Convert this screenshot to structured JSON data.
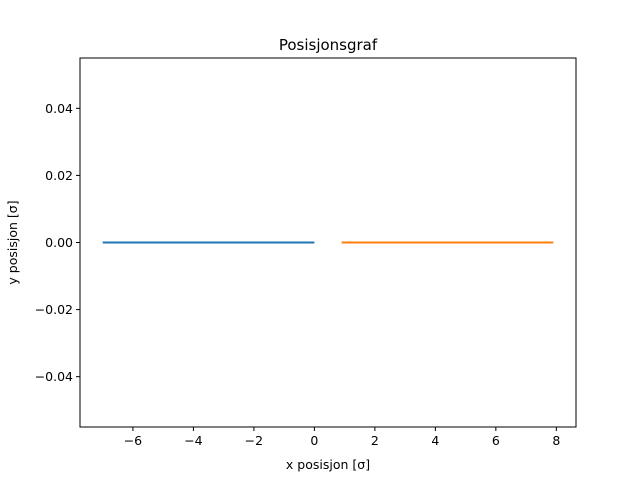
{
  "chart_data": {
    "type": "line",
    "title": "Posisjonsgraf",
    "xlabel": "x posisjon [σ]",
    "ylabel": "y posisjon [σ]",
    "xlim": [
      -7.75,
      8.65
    ],
    "ylim": [
      -0.055,
      0.055
    ],
    "xticks": [
      -6,
      -4,
      -2,
      0,
      2,
      4,
      6,
      8
    ],
    "xtick_labels": [
      "−6",
      "−4",
      "−2",
      "0",
      "2",
      "4",
      "6",
      "8"
    ],
    "yticks": [
      -0.04,
      -0.02,
      0.0,
      0.02,
      0.04
    ],
    "ytick_labels": [
      "−0.04",
      "−0.02",
      "0.00",
      "0.02",
      "0.04"
    ],
    "grid": false,
    "legend": "none",
    "series": [
      {
        "color": "#1f77b4",
        "x": [
          -7.0,
          0.0
        ],
        "y": [
          0.0,
          0.0
        ]
      },
      {
        "color": "#ff7f0e",
        "x": [
          0.9,
          7.9
        ],
        "y": [
          0.0,
          0.0
        ]
      }
    ]
  }
}
